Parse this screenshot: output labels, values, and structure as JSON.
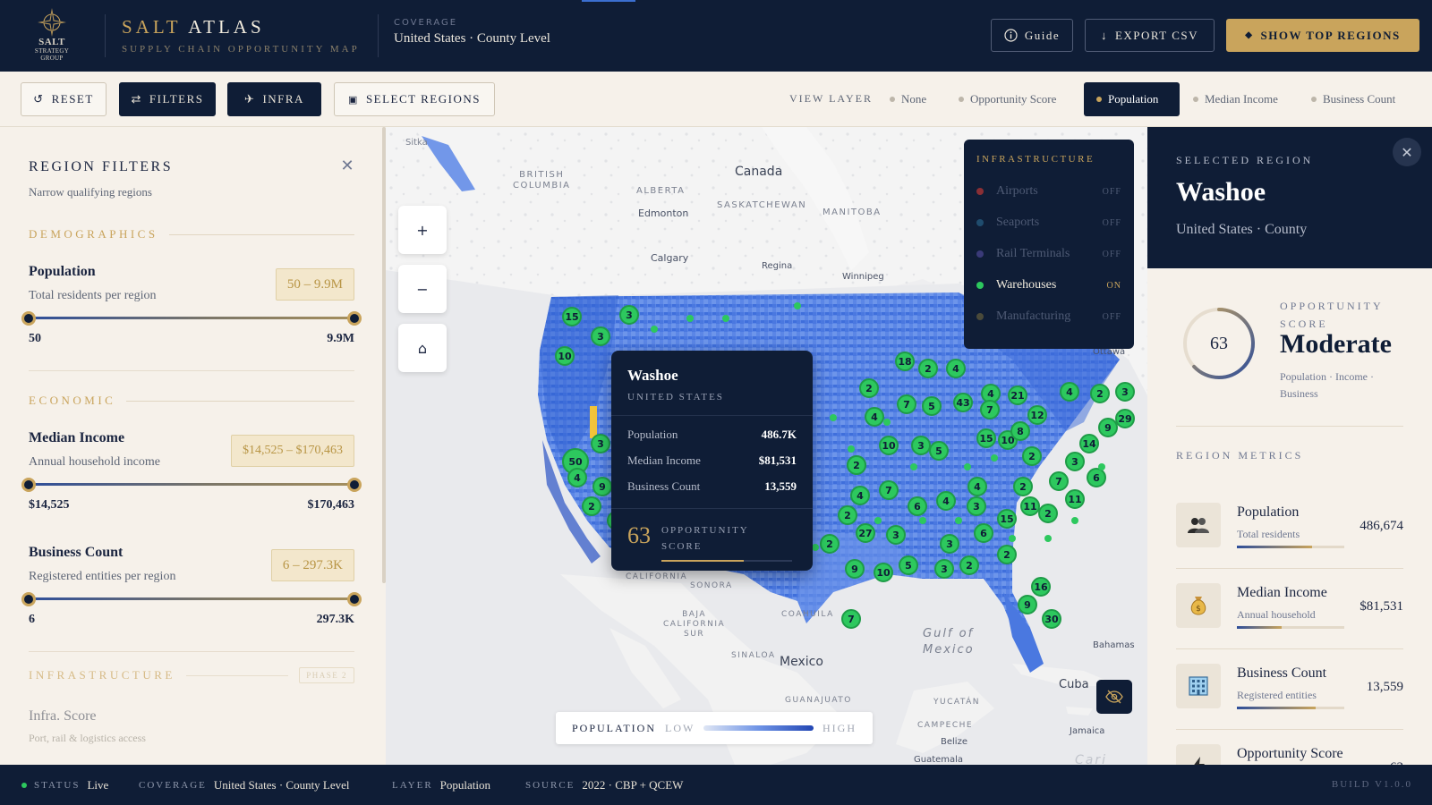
{
  "brand": {
    "logo_line1": "SALT",
    "logo_line2": "STRATEGY",
    "logo_line3": "GROUP",
    "title_a": "SALT",
    "title_b": "ATLAS",
    "subtitle": "SUPPLY CHAIN OPPORTUNITY MAP"
  },
  "header": {
    "coverage_label": "COVERAGE",
    "coverage_value": "United States · County Level",
    "guide_label": "Guide",
    "export_label": "EXPORT CSV",
    "top_regions_label": "SHOW TOP REGIONS"
  },
  "toolbar": {
    "reset_label": "RESET",
    "filters_label": "FILTERS",
    "infra_label": "INFRA",
    "select_label": "SELECT REGIONS",
    "view_layer_label": "VIEW LAYER",
    "layers": [
      "None",
      "Opportunity Score",
      "Population",
      "Median Income",
      "Business Count"
    ],
    "active_layer": "Population"
  },
  "filters": {
    "title": "REGION FILTERS",
    "subtitle": "Narrow qualifying regions",
    "demographics_label": "DEMOGRAPHICS",
    "economic_label": "ECONOMIC",
    "infrastructure_label": "INFRASTRUCTURE",
    "phase_tag": "PHASE 2",
    "population": {
      "name": "Population",
      "desc": "Total residents per region",
      "range": "50 – 9.9M",
      "min": "50",
      "max": "9.9M"
    },
    "income": {
      "name": "Median Income",
      "desc": "Annual household income",
      "range": "$14,525 – $170,463",
      "min": "$14,525",
      "max": "$170,463"
    },
    "business": {
      "name": "Business Count",
      "desc": "Registered entities per region",
      "range": "6 – 297.3K",
      "min": "6",
      "max": "297.3K"
    },
    "infra_score": {
      "name": "Infra. Score",
      "desc": "Port, rail & logistics access"
    }
  },
  "map": {
    "labels": {
      "sitka": "Sitka",
      "bc": "BRITISH\nCOLUMBIA",
      "canada": "Canada",
      "alberta": "ALBERTA",
      "saskatchewan": "SASKATCHEWAN",
      "manitoba": "MANITOBA",
      "edmonton": "Edmonton",
      "calgary": "Calgary",
      "regina": "Regina",
      "winnipeg": "Winnipeg",
      "ottawa": "Ottawa",
      "california": "CALIFORNIA",
      "sonora": "SONORA",
      "baja": "BAJA\nCALIFORNIA\nSUR",
      "sinaloa": "SINALOA",
      "coahuila": "COAHUILA",
      "mexico": "Mexico",
      "guanajuato": "GUANAJUATO",
      "gulf": "Gulf of\nMexico",
      "yucatan": "YUCATÁN",
      "campeche": "CAMPECHE",
      "belize": "Belize",
      "guatemala": "Guatemala",
      "cuba": "Cuba",
      "bahamas": "Bahamas",
      "jamaica": "Jamaica",
      "cari": "Cari"
    },
    "clusters": [
      "15",
      "3",
      "3",
      "10",
      "3",
      "50",
      "4",
      "9",
      "2",
      "3",
      "18",
      "2",
      "4",
      "2",
      "7",
      "5",
      "43",
      "4",
      "7",
      "21",
      "12",
      "4",
      "2",
      "3",
      "29",
      "4",
      "2",
      "10",
      "3",
      "5",
      "15",
      "10",
      "8",
      "9",
      "14",
      "2",
      "2",
      "3",
      "7",
      "6",
      "11",
      "4",
      "7",
      "2",
      "6",
      "4",
      "4",
      "3",
      "2",
      "11",
      "15",
      "2",
      "27",
      "3",
      "3",
      "6",
      "2",
      "9",
      "10",
      "5",
      "3",
      "2",
      "16",
      "9",
      "30",
      "7",
      "2"
    ],
    "tooltip": {
      "name": "Washoe",
      "country": "UNITED STATES",
      "rows": [
        {
          "k": "Population",
          "v": "486.7K"
        },
        {
          "k": "Median Income",
          "v": "$81,531"
        },
        {
          "k": "Business Count",
          "v": "13,559"
        }
      ],
      "score": "63",
      "score_label": "OPPORTUNITY SCORE",
      "score_fraction": 0.63
    },
    "infra": {
      "title": "INFRASTRUCTURE",
      "items": [
        {
          "name": "Airports",
          "state": "OFF",
          "color": "#8a2f35"
        },
        {
          "name": "Seaports",
          "state": "OFF",
          "color": "#1f4c6e"
        },
        {
          "name": "Rail Terminals",
          "state": "OFF",
          "color": "#3a3a78"
        },
        {
          "name": "Warehouses",
          "state": "ON",
          "color": "#2dc85e"
        },
        {
          "name": "Manufacturing",
          "state": "OFF",
          "color": "#4a4a3a"
        }
      ]
    },
    "legend": {
      "title": "POPULATION",
      "low": "LOW",
      "high": "HIGH"
    }
  },
  "selected": {
    "kicker": "SELECTED REGION",
    "name": "Washoe",
    "location": "United States · County",
    "score": "63",
    "score_fraction": 0.63,
    "score_label": "OPPORTUNITY SCORE",
    "level": "Moderate",
    "level_desc": "Population · Income · Business",
    "metrics_title": "REGION METRICS",
    "metrics": [
      {
        "name": "Population",
        "desc": "Total residents",
        "value": "486,674",
        "fill": 0.7
      },
      {
        "name": "Median Income",
        "desc": "Annual household",
        "value": "$81,531",
        "fill": 0.42
      },
      {
        "name": "Business Count",
        "desc": "Registered entities",
        "value": "13,559",
        "fill": 0.73
      },
      {
        "name": "Opportunity Score",
        "desc": "",
        "value": "63",
        "fill": 0.63
      }
    ]
  },
  "status": {
    "status_label": "STATUS",
    "status_value": "Live",
    "coverage_label": "COVERAGE",
    "coverage_value": "United States · County Level",
    "layer_label": "LAYER",
    "layer_value": "Population",
    "source_label": "SOURCE",
    "source_value": "2022 · CBP + QCEW",
    "build": "BUILD V1.0.0"
  },
  "colors": {
    "navy": "#0f1d36",
    "gold": "#c9a45c",
    "green": "#2dc85e",
    "blue": "#3f74e0"
  }
}
